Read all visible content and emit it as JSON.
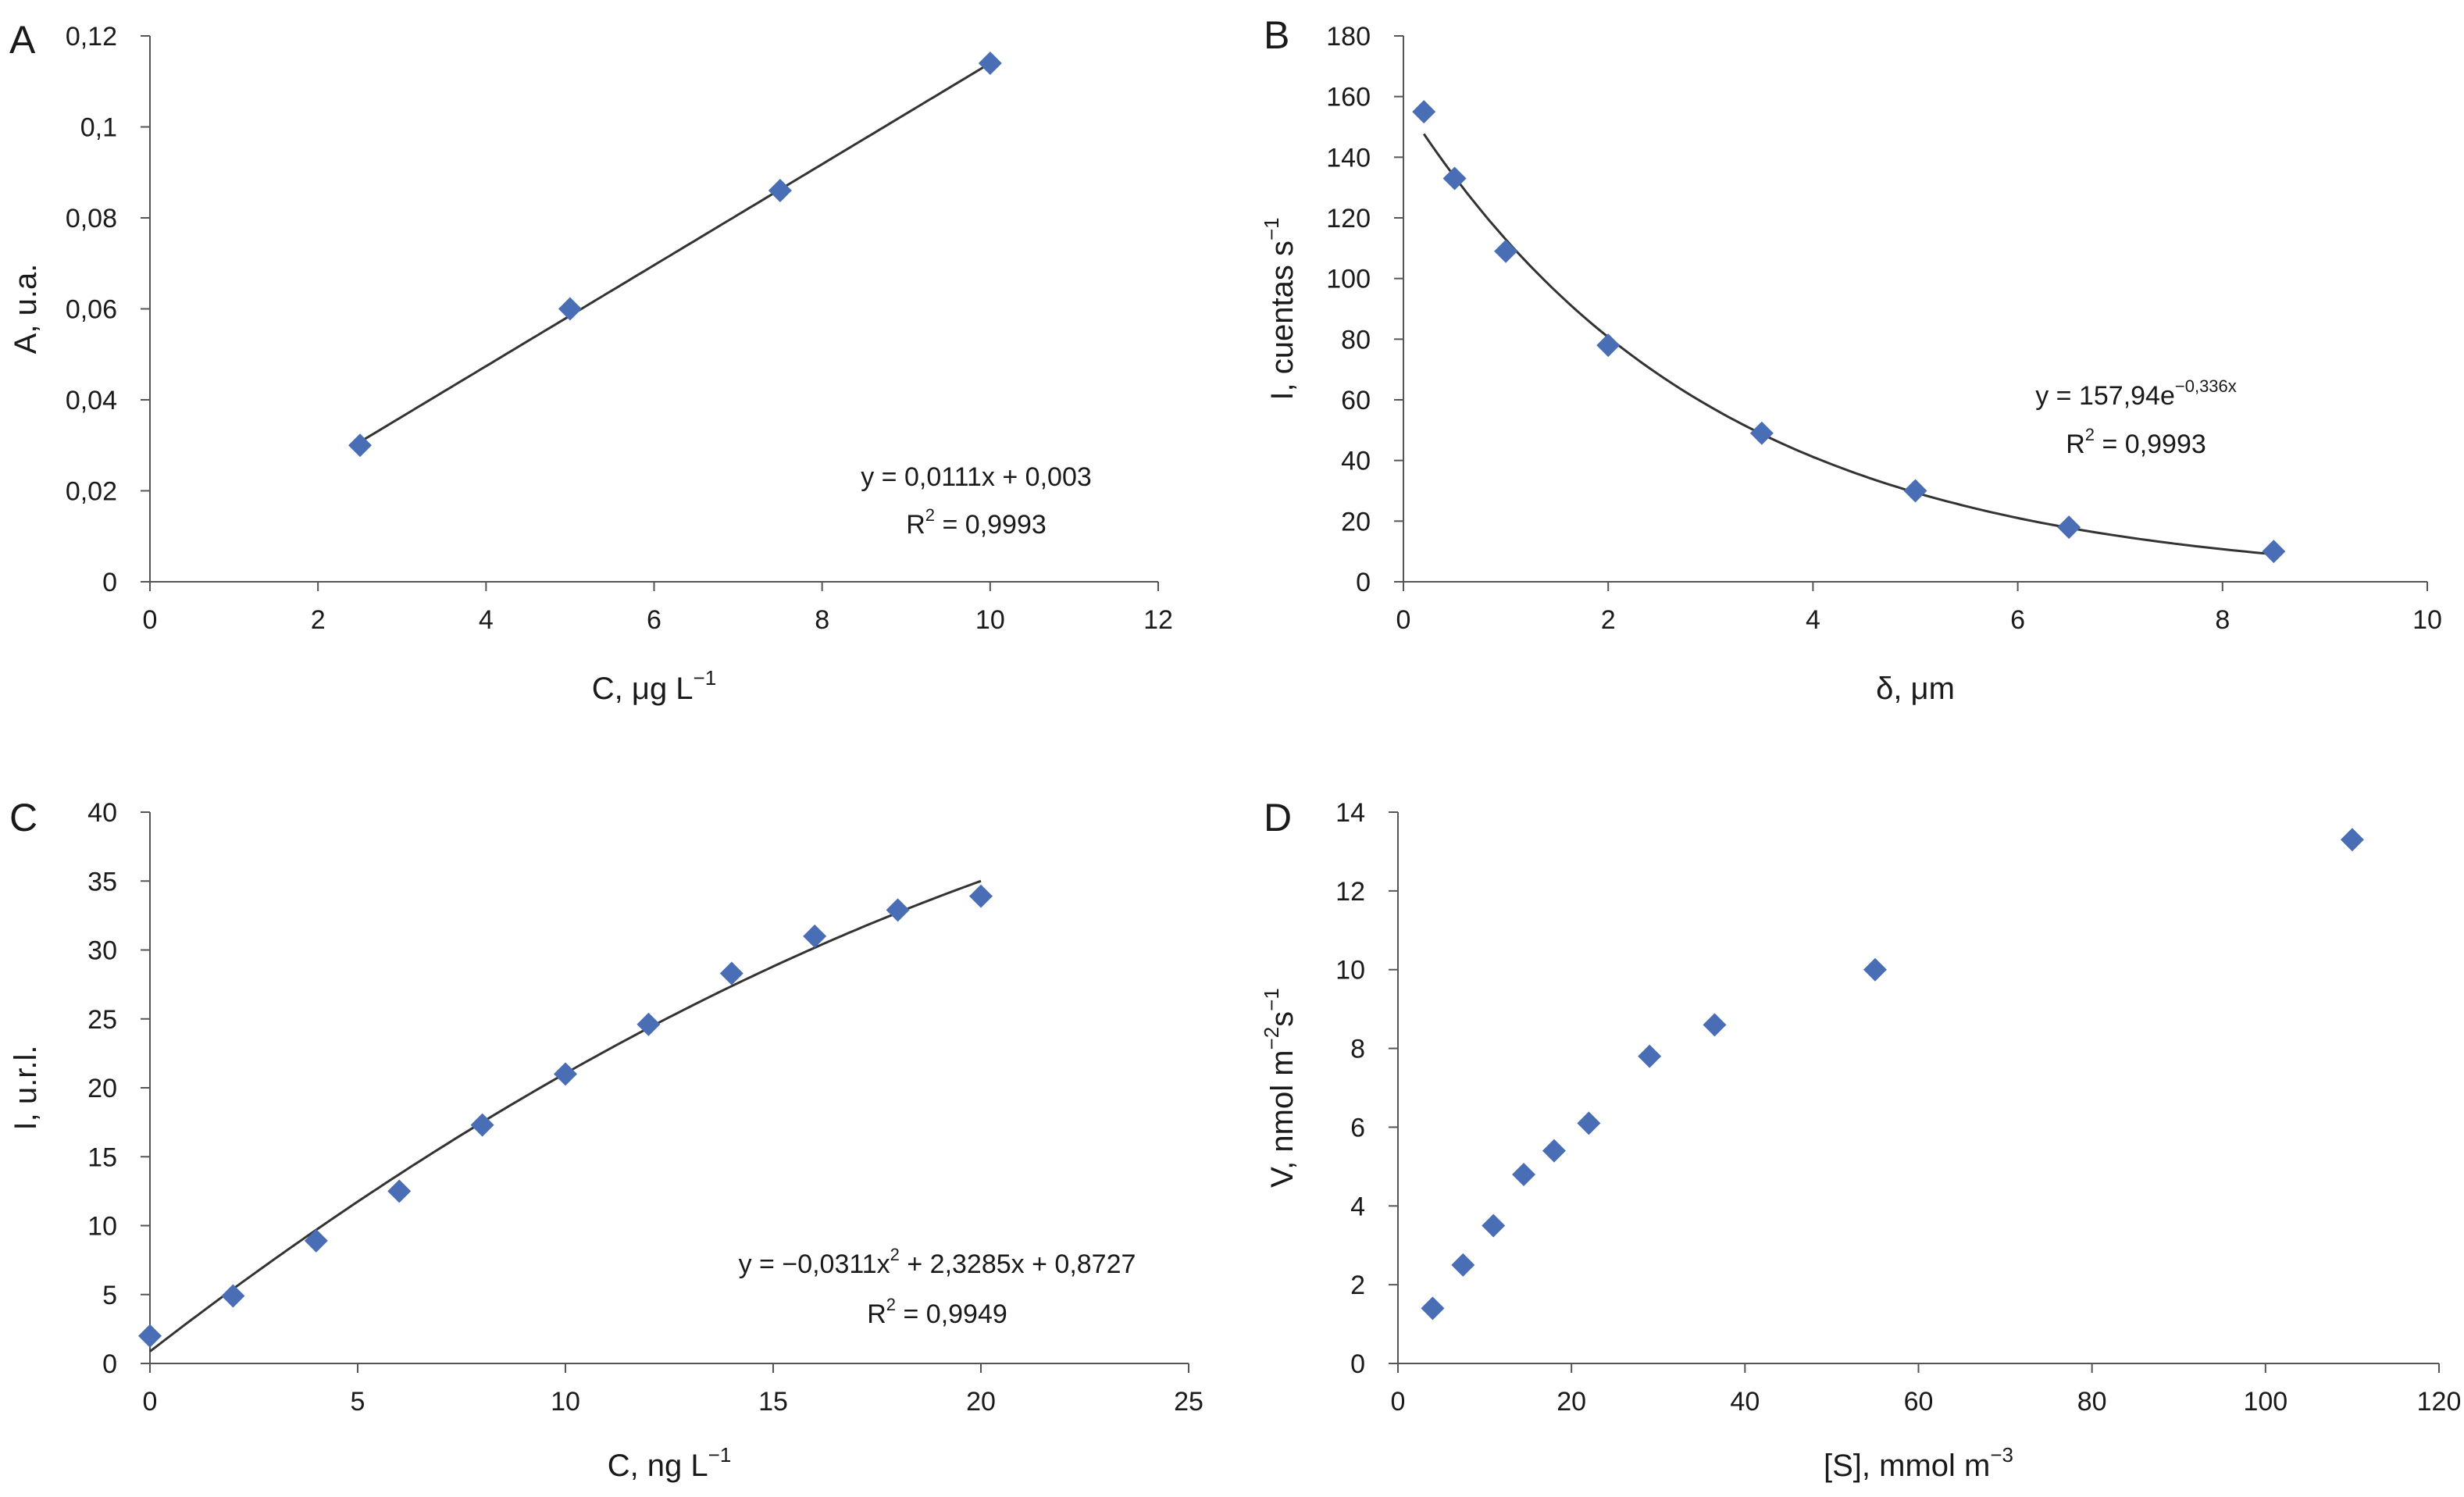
{
  "chart_data": [
    {
      "panel_label": "A",
      "type": "scatter",
      "xlabel": "C, μg L",
      "xlabel_sup": "−1",
      "ylabel": "A, u.a.",
      "xlim": [
        0,
        12
      ],
      "ylim": [
        0,
        0.12
      ],
      "x_ticks": [
        0,
        2,
        4,
        6,
        8,
        10,
        12
      ],
      "y_ticks": [
        0,
        0.02,
        0.04,
        0.06,
        0.08,
        0.1,
        0.12
      ],
      "y_tick_labels": [
        "0",
        "0,02",
        "0,04",
        "0,06",
        "0,08",
        "0,1",
        "0,12"
      ],
      "x_tick_labels": [
        "0",
        "2",
        "4",
        "6",
        "8",
        "10",
        "12"
      ],
      "points": [
        {
          "x": 2.5,
          "y": 0.03
        },
        {
          "x": 5,
          "y": 0.06
        },
        {
          "x": 7.5,
          "y": 0.086
        },
        {
          "x": 10,
          "y": 0.114
        }
      ],
      "fit": {
        "kind": "linear",
        "a": 0.0111,
        "b": 0.003,
        "x_range": [
          2.5,
          10
        ]
      },
      "equation": {
        "line1": "y = 0,0111x + 0,003",
        "line2_pre": "R",
        "line2_sup": "2",
        "line2_post": " = 0,9993"
      },
      "marker_color": "#4a6eb5",
      "line_color": "#333333"
    },
    {
      "panel_label": "B",
      "type": "scatter",
      "xlabel": "δ, μm",
      "ylabel": "I, cuentas s",
      "ylabel_sup": "−1",
      "xlim": [
        0,
        10
      ],
      "ylim": [
        0,
        180
      ],
      "x_ticks": [
        0,
        2,
        4,
        6,
        8,
        10
      ],
      "y_ticks": [
        0,
        20,
        40,
        60,
        80,
        100,
        120,
        140,
        160,
        180
      ],
      "x_tick_labels": [
        "0",
        "2",
        "4",
        "6",
        "8",
        "10"
      ],
      "y_tick_labels": [
        "0",
        "20",
        "40",
        "60",
        "80",
        "100",
        "120",
        "140",
        "160",
        "180"
      ],
      "points": [
        {
          "x": 0.2,
          "y": 155
        },
        {
          "x": 0.5,
          "y": 133
        },
        {
          "x": 1.0,
          "y": 109
        },
        {
          "x": 2.0,
          "y": 78
        },
        {
          "x": 3.5,
          "y": 49
        },
        {
          "x": 5.0,
          "y": 30
        },
        {
          "x": 6.5,
          "y": 18
        },
        {
          "x": 8.5,
          "y": 10
        }
      ],
      "fit": {
        "kind": "exponential",
        "a": 157.94,
        "b": -0.336,
        "x_range": [
          0.2,
          8.5
        ]
      },
      "equation": {
        "line1_pre": "y = 157,94e",
        "line1_sup": "−0,336x",
        "line2_pre": "R",
        "line2_sup": "2",
        "line2_post": " = 0,9993"
      },
      "marker_color": "#4a6eb5",
      "line_color": "#333333"
    },
    {
      "panel_label": "C",
      "type": "scatter",
      "xlabel": "C, ng L",
      "xlabel_sup": "−1",
      "ylabel": "I, u.r.l.",
      "xlim": [
        0,
        25
      ],
      "ylim": [
        0,
        40
      ],
      "x_ticks": [
        0,
        5,
        10,
        15,
        20,
        25
      ],
      "y_ticks": [
        0,
        5,
        10,
        15,
        20,
        25,
        30,
        35,
        40
      ],
      "x_tick_labels": [
        "0",
        "5",
        "10",
        "15",
        "20",
        "25"
      ],
      "y_tick_labels": [
        "0",
        "5",
        "10",
        "15",
        "20",
        "25",
        "30",
        "35",
        "40"
      ],
      "points": [
        {
          "x": 0,
          "y": 2.0
        },
        {
          "x": 2,
          "y": 4.9
        },
        {
          "x": 4,
          "y": 8.9
        },
        {
          "x": 6,
          "y": 12.5
        },
        {
          "x": 8,
          "y": 17.3
        },
        {
          "x": 10,
          "y": 21.0
        },
        {
          "x": 12,
          "y": 24.6
        },
        {
          "x": 14,
          "y": 28.3
        },
        {
          "x": 16,
          "y": 31.0
        },
        {
          "x": 18,
          "y": 32.9
        },
        {
          "x": 20,
          "y": 33.9
        }
      ],
      "fit": {
        "kind": "quadratic",
        "a": -0.0311,
        "b": 2.3285,
        "c": 0.8727,
        "x_range": [
          0,
          20
        ]
      },
      "equation": {
        "line1_pre": "y = −0,0311x",
        "line1_sup": "2",
        "line1_post": " + 2,3285x + 0,8727",
        "line2_pre": "R",
        "line2_sup": "2",
        "line2_post": " = 0,9949"
      },
      "marker_color": "#4a6eb5",
      "line_color": "#333333"
    },
    {
      "panel_label": "D",
      "type": "scatter",
      "xlabel": "[S], mmol m",
      "xlabel_sup": "−3",
      "ylabel_parts": [
        "V, nmol m",
        "−2",
        "s",
        "−1"
      ],
      "xlim": [
        0,
        120
      ],
      "ylim": [
        0,
        14
      ],
      "x_ticks": [
        0,
        20,
        40,
        60,
        80,
        100,
        120
      ],
      "y_ticks": [
        0,
        2,
        4,
        6,
        8,
        10,
        12,
        14
      ],
      "x_tick_labels": [
        "0",
        "20",
        "40",
        "60",
        "80",
        "100",
        "120"
      ],
      "y_tick_labels": [
        "0",
        "2",
        "4",
        "6",
        "8",
        "10",
        "12",
        "14"
      ],
      "points": [
        {
          "x": 4,
          "y": 1.4
        },
        {
          "x": 7.5,
          "y": 2.5
        },
        {
          "x": 11,
          "y": 3.5
        },
        {
          "x": 14.5,
          "y": 4.8
        },
        {
          "x": 18,
          "y": 5.4
        },
        {
          "x": 22,
          "y": 6.1
        },
        {
          "x": 29,
          "y": 7.8
        },
        {
          "x": 36.5,
          "y": 8.6
        },
        {
          "x": 55,
          "y": 10.0
        },
        {
          "x": 110,
          "y": 13.3
        }
      ],
      "marker_color": "#4a6eb5"
    }
  ]
}
